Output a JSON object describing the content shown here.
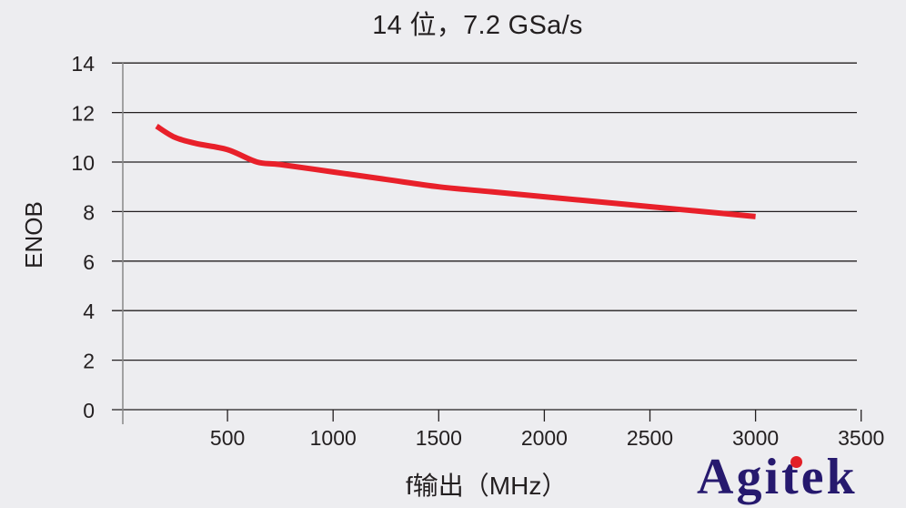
{
  "chart_data": {
    "type": "line",
    "title": "14 位，7.2 GSa/s",
    "xlabel": "f输出（MHz）",
    "ylabel": "ENOB",
    "xlim": [
      0,
      3500
    ],
    "ylim": [
      0,
      14
    ],
    "xticks": [
      500,
      1000,
      1500,
      2000,
      2500,
      3000,
      3500
    ],
    "yticks": [
      0,
      2,
      4,
      6,
      8,
      10,
      12,
      14
    ],
    "grid": "horizontal",
    "legend": null,
    "series": [
      {
        "name": "ENOB",
        "color": "#e8202a",
        "x": [
          164,
          250,
          350,
          500,
          640,
          750,
          1000,
          1250,
          1500,
          1750,
          2000,
          2250,
          2500,
          2750,
          3000
        ],
        "y": [
          11.45,
          11.0,
          10.75,
          10.5,
          10.0,
          9.9,
          9.6,
          9.3,
          9.0,
          8.8,
          8.6,
          8.4,
          8.2,
          8.0,
          7.8
        ]
      }
    ]
  },
  "title": "14 位，7.2 GSa/s",
  "axes": {
    "ylabel": "ENOB",
    "xlabel": "f输出（MHz）",
    "yticks": [
      "0",
      "2",
      "4",
      "6",
      "8",
      "10",
      "12",
      "14"
    ],
    "xticks": [
      "500",
      "1000",
      "1500",
      "2000",
      "2500",
      "3000",
      "3500"
    ]
  },
  "logo": {
    "text": "Agitek",
    "color": "#26196e",
    "dot_color": "#e21f26"
  }
}
